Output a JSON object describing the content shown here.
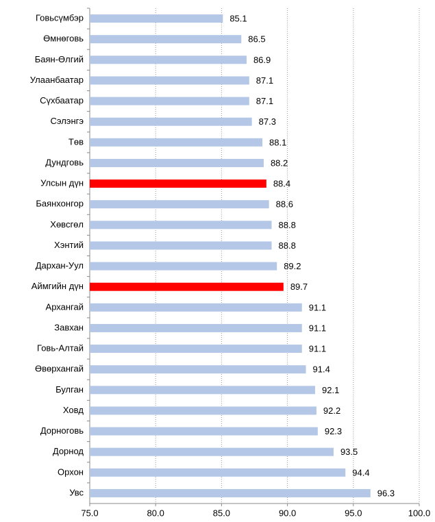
{
  "chart_data": {
    "type": "bar",
    "orientation": "horizontal",
    "categories": [
      "Говьсүмбэр",
      "Өмнөговь",
      "Баян-Өлгий",
      "Улаанбаатар",
      "Сүхбаатар",
      "Сэлэнгэ",
      "Төв",
      "Дундговь",
      "Улсын дүн",
      "Баянхонгор",
      "Хөвсгөл",
      "Хэнтий",
      "Дархан-Уул",
      "Аймгийн дүн",
      "Архангай",
      "Завхан",
      "Говь-Алтай",
      "Өвөрхангай",
      "Булган",
      "Ховд",
      "Дорноговь",
      "Дорнод",
      "Орхон",
      "Увс"
    ],
    "values": [
      85.1,
      86.5,
      86.9,
      87.1,
      87.1,
      87.3,
      88.1,
      88.2,
      88.4,
      88.6,
      88.8,
      88.8,
      89.2,
      89.7,
      91.1,
      91.1,
      91.1,
      91.4,
      92.1,
      92.2,
      92.3,
      93.5,
      94.4,
      96.3
    ],
    "colors": [
      "#b4c7e7",
      "#b4c7e7",
      "#b4c7e7",
      "#b4c7e7",
      "#b4c7e7",
      "#b4c7e7",
      "#b4c7e7",
      "#b4c7e7",
      "#ff0000",
      "#b4c7e7",
      "#b4c7e7",
      "#b4c7e7",
      "#b4c7e7",
      "#ff0000",
      "#b4c7e7",
      "#b4c7e7",
      "#b4c7e7",
      "#b4c7e7",
      "#b4c7e7",
      "#b4c7e7",
      "#b4c7e7",
      "#b4c7e7",
      "#b4c7e7",
      "#b4c7e7"
    ],
    "xlim": [
      75,
      100
    ],
    "xticks": [
      {
        "value": 75,
        "label": "75.0"
      },
      {
        "value": 80,
        "label": "80.0"
      },
      {
        "value": 85,
        "label": "85.0"
      },
      {
        "value": 90,
        "label": "90.0"
      },
      {
        "value": 95,
        "label": "95.0"
      },
      {
        "value": 100,
        "label": "100.0"
      }
    ],
    "grid": true
  }
}
